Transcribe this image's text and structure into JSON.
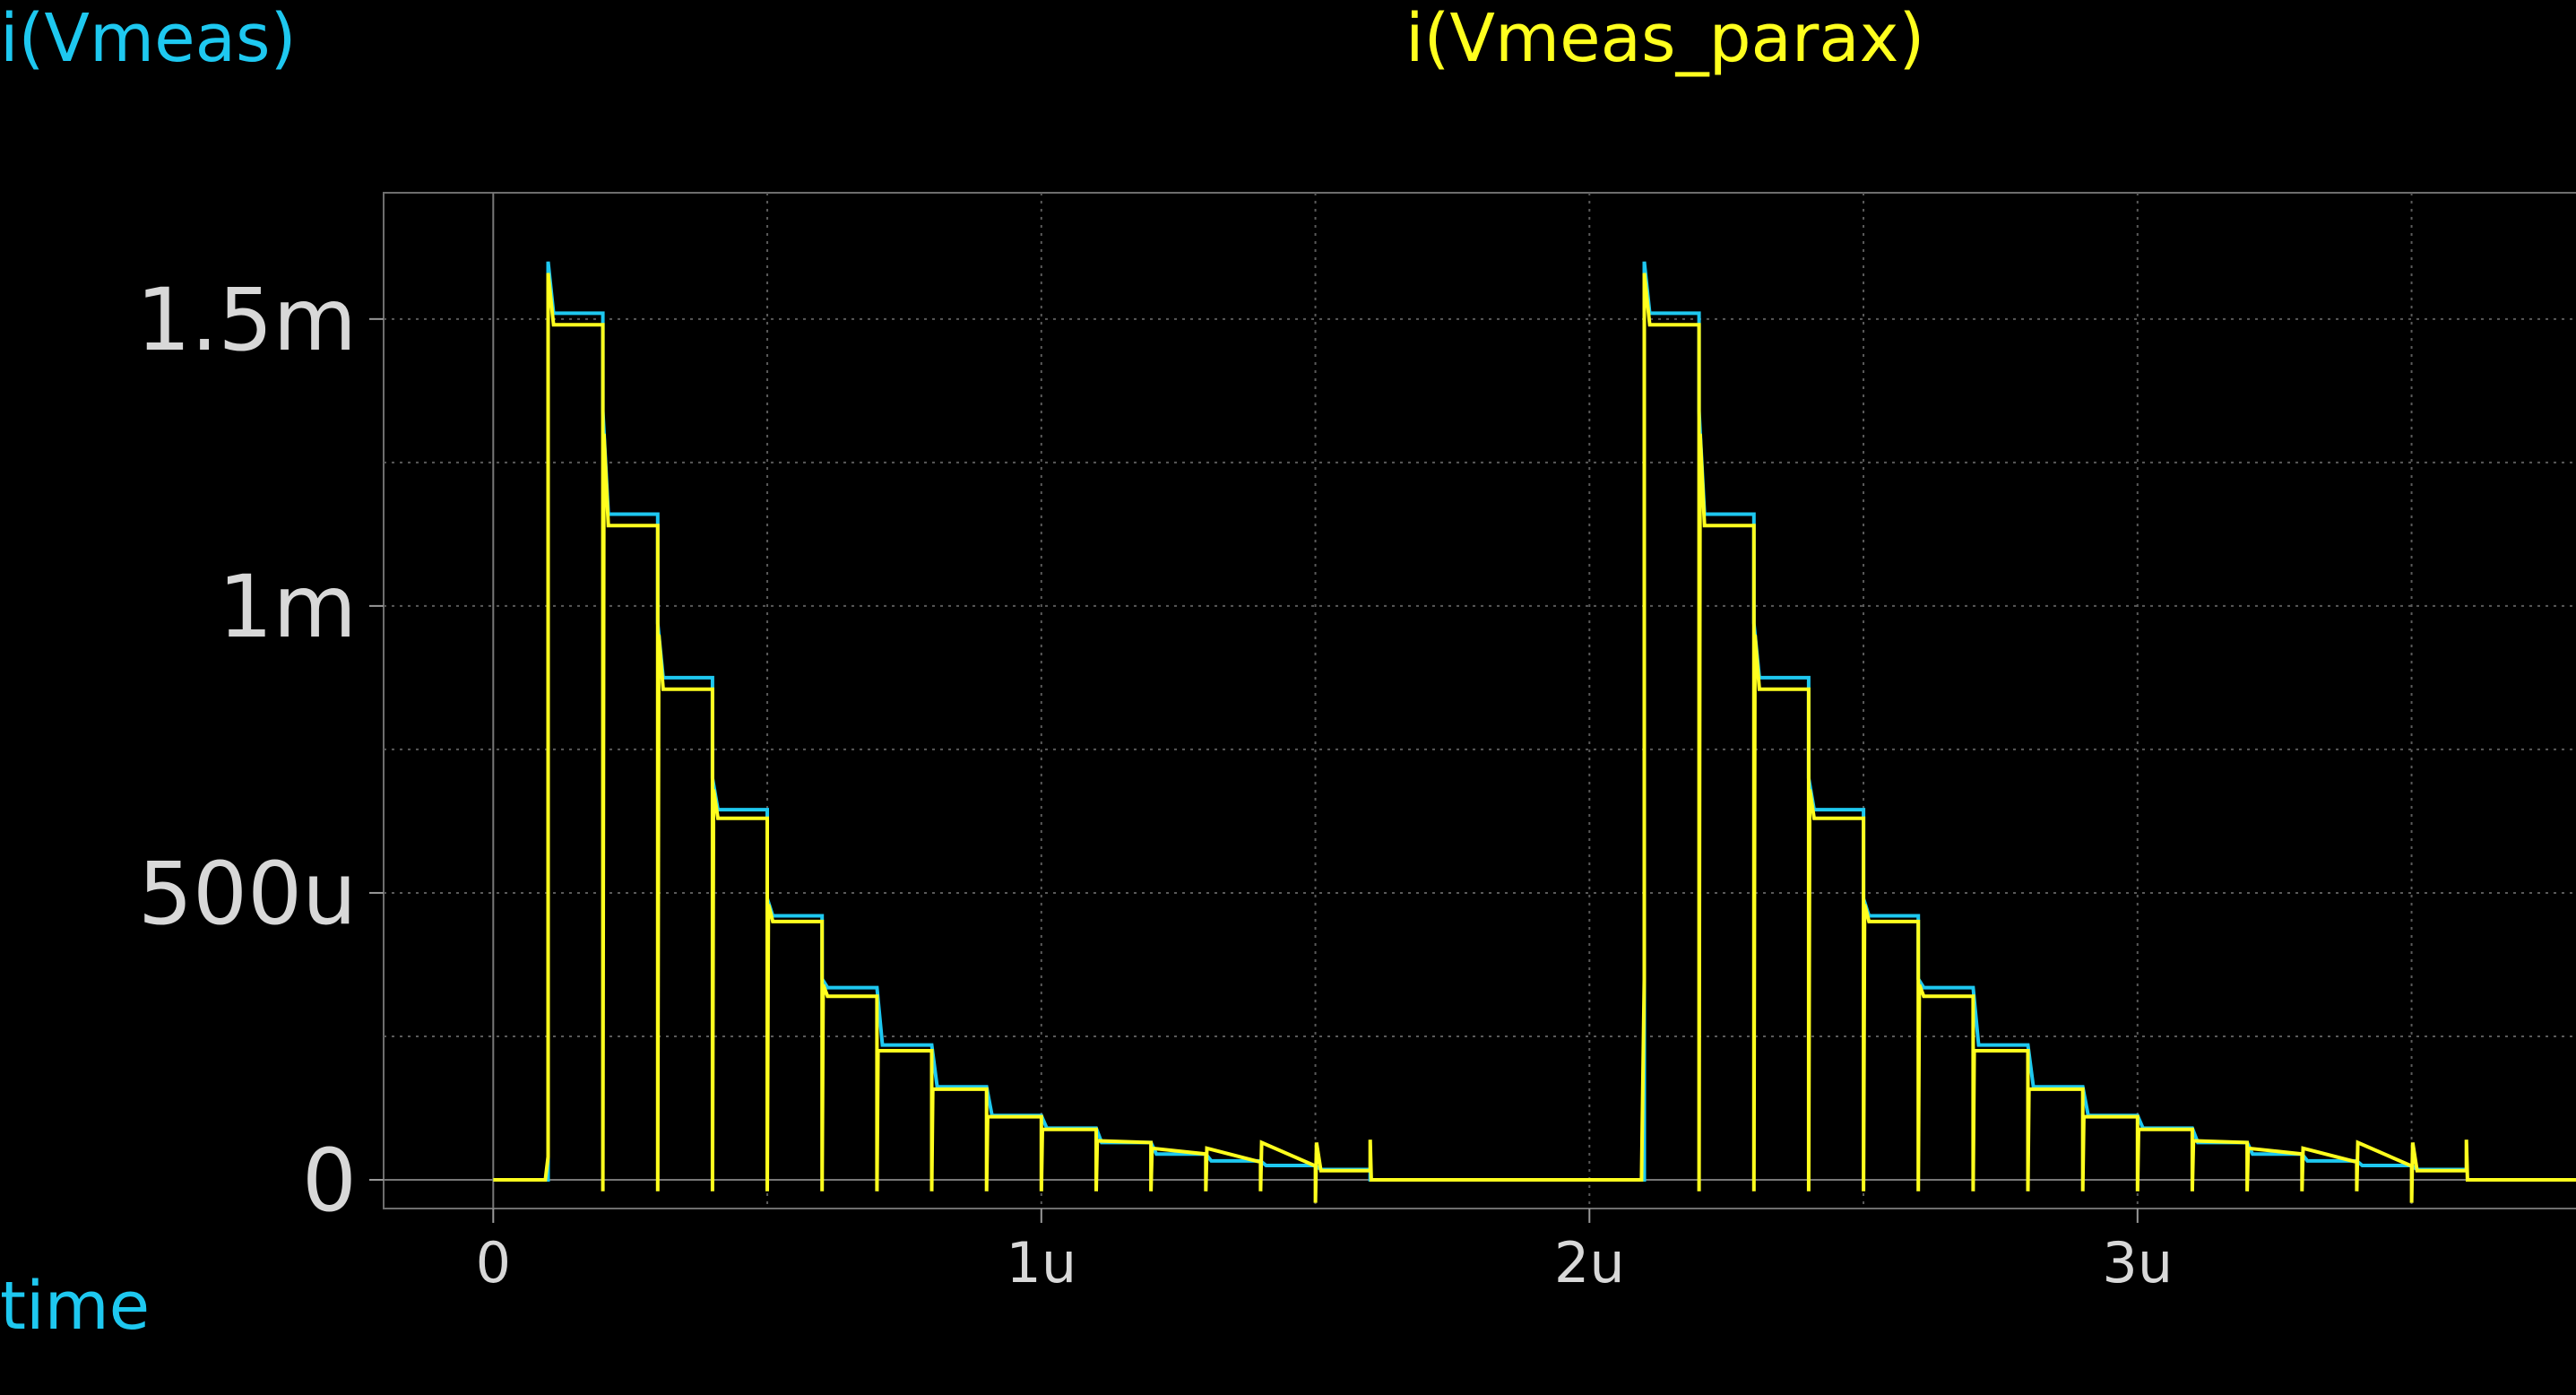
{
  "chart_data": {
    "type": "line",
    "xlabel": "time",
    "ylabel": "",
    "xlim": [
      -2e-07,
      3.8e-06
    ],
    "ylim": [
      -5e-05,
      0.00172
    ],
    "grid": true,
    "xticks": [
      {
        "value": 0,
        "label": "0"
      },
      {
        "value": 1e-06,
        "label": "1u"
      },
      {
        "value": 2e-06,
        "label": "2u"
      },
      {
        "value": 3e-06,
        "label": "3u"
      }
    ],
    "yticks": [
      {
        "value": 0,
        "label": "0"
      },
      {
        "value": 0.0005,
        "label": "500u"
      },
      {
        "value": 0.001,
        "label": "1m"
      },
      {
        "value": 0.0015,
        "label": "1.5m"
      }
    ],
    "minor_x": [
      5e-07,
      1.5e-06,
      2.5e-06,
      3.5e-06
    ],
    "minor_y": [
      0.00025,
      0.00075,
      0.00125
    ],
    "series": [
      {
        "name": "i(Vmeas)",
        "color": "#1ec8f0",
        "points": [
          [
            0,
            0
          ],
          [
            1e-07,
            0
          ],
          [
            1e-07,
            0.0016
          ],
          [
            1.1e-07,
            0.00151
          ],
          [
            2e-07,
            0.00151
          ],
          [
            2e-07,
            0.00134
          ],
          [
            2.1e-07,
            0.00116
          ],
          [
            3e-07,
            0.00116
          ],
          [
            3e-07,
            0.00097
          ],
          [
            3.1e-07,
            0.000875
          ],
          [
            4e-07,
            0.000875
          ],
          [
            4e-07,
            0.0007
          ],
          [
            4.1e-07,
            0.000645
          ],
          [
            5e-07,
            0.000645
          ],
          [
            5e-07,
            0.00049
          ],
          [
            5.1e-07,
            0.00046
          ],
          [
            6e-07,
            0.00046
          ],
          [
            6e-07,
            0.00035
          ],
          [
            6.1e-07,
            0.000335
          ],
          [
            7e-07,
            0.000335
          ],
          [
            7.1e-07,
            0.000235
          ],
          [
            8e-07,
            0.000235
          ],
          [
            8.1e-07,
            0.000162
          ],
          [
            9e-07,
            0.000162
          ],
          [
            9.1e-07,
            0.000112
          ],
          [
            1e-06,
            0.000112
          ],
          [
            1.01e-06,
            9e-05
          ],
          [
            1.1e-06,
            9e-05
          ],
          [
            1.11e-06,
            6.5e-05
          ],
          [
            1.2e-06,
            6.5e-05
          ],
          [
            1.21e-06,
            4.5e-05
          ],
          [
            1.3e-06,
            4.5e-05
          ],
          [
            1.31e-06,
            3.3e-05
          ],
          [
            1.4e-06,
            3.3e-05
          ],
          [
            1.41e-06,
            2.5e-05
          ],
          [
            1.5e-06,
            2.5e-05
          ],
          [
            1.51e-06,
            1.8e-05
          ],
          [
            1.6e-06,
            1.8e-05
          ],
          [
            1.6e-06,
            0
          ],
          [
            2.1e-06,
            0
          ],
          [
            2.1e-06,
            0.0016
          ],
          [
            2.11e-06,
            0.00151
          ],
          [
            2.2e-06,
            0.00151
          ],
          [
            2.2e-06,
            0.00134
          ],
          [
            2.21e-06,
            0.00116
          ],
          [
            2.3e-06,
            0.00116
          ],
          [
            2.3e-06,
            0.00097
          ],
          [
            2.31e-06,
            0.000875
          ],
          [
            2.4e-06,
            0.000875
          ],
          [
            2.4e-06,
            0.0007
          ],
          [
            2.41e-06,
            0.000645
          ],
          [
            2.5e-06,
            0.000645
          ],
          [
            2.5e-06,
            0.00049
          ],
          [
            2.51e-06,
            0.00046
          ],
          [
            2.6e-06,
            0.00046
          ],
          [
            2.6e-06,
            0.00035
          ],
          [
            2.61e-06,
            0.000335
          ],
          [
            2.7e-06,
            0.000335
          ],
          [
            2.71e-06,
            0.000235
          ],
          [
            2.8e-06,
            0.000235
          ],
          [
            2.81e-06,
            0.000162
          ],
          [
            2.9e-06,
            0.000162
          ],
          [
            2.91e-06,
            0.000112
          ],
          [
            3e-06,
            0.000112
          ],
          [
            3.01e-06,
            9e-05
          ],
          [
            3.1e-06,
            9e-05
          ],
          [
            3.11e-06,
            6.5e-05
          ],
          [
            3.2e-06,
            6.5e-05
          ],
          [
            3.21e-06,
            4.5e-05
          ],
          [
            3.3e-06,
            4.5e-05
          ],
          [
            3.31e-06,
            3.3e-05
          ],
          [
            3.4e-06,
            3.3e-05
          ],
          [
            3.41e-06,
            2.5e-05
          ],
          [
            3.5e-06,
            2.5e-05
          ],
          [
            3.51e-06,
            1.8e-05
          ],
          [
            3.6e-06,
            1.8e-05
          ]
        ]
      },
      {
        "name": "i(Vmeas_parax)",
        "color": "#ffff1e",
        "points": [
          [
            0,
            0
          ],
          [
            9.5e-08,
            0
          ],
          [
            1e-07,
            4e-05
          ],
          [
            1e-07,
            0.00158
          ],
          [
            1.1e-07,
            0.00149
          ],
          [
            2e-07,
            0.00149
          ],
          [
            2e-07,
            -2e-05
          ],
          [
            2.02e-07,
            0.0013
          ],
          [
            2.1e-07,
            0.00114
          ],
          [
            3e-07,
            0.00114
          ],
          [
            3e-07,
            -2e-05
          ],
          [
            3.02e-07,
            0.00095
          ],
          [
            3.1e-07,
            0.000855
          ],
          [
            4e-07,
            0.000855
          ],
          [
            4e-07,
            -2e-05
          ],
          [
            4.02e-07,
            0.00068
          ],
          [
            4.1e-07,
            0.00063
          ],
          [
            5e-07,
            0.00063
          ],
          [
            5e-07,
            -2e-05
          ],
          [
            5.02e-07,
            0.00048
          ],
          [
            5.1e-07,
            0.00045
          ],
          [
            6e-07,
            0.00045
          ],
          [
            6e-07,
            -2e-05
          ],
          [
            6.02e-07,
            0.00034
          ],
          [
            6.1e-07,
            0.00032
          ],
          [
            7e-07,
            0.00032
          ],
          [
            7e-07,
            -2e-05
          ],
          [
            7.02e-07,
            0.000225
          ],
          [
            8e-07,
            0.000225
          ],
          [
            8e-07,
            -2e-05
          ],
          [
            8.02e-07,
            0.000158
          ],
          [
            9e-07,
            0.000158
          ],
          [
            9e-07,
            -2e-05
          ],
          [
            9.02e-07,
            0.00011
          ],
          [
            1e-06,
            0.00011
          ],
          [
            1e-06,
            -2e-05
          ],
          [
            1.002e-06,
            8.8e-05
          ],
          [
            1.1e-06,
            8.8e-05
          ],
          [
            1.1e-06,
            -2e-05
          ],
          [
            1.102e-06,
            6.8e-05
          ],
          [
            1.2e-06,
            6.5e-05
          ],
          [
            1.2e-06,
            -2e-05
          ],
          [
            1.202e-06,
            5.5e-05
          ],
          [
            1.3e-06,
            4.5e-05
          ],
          [
            1.3e-06,
            -2e-05
          ],
          [
            1.302e-06,
            5.5e-05
          ],
          [
            1.4e-06,
            3.1e-05
          ],
          [
            1.4e-06,
            -2e-05
          ],
          [
            1.402e-06,
            6.5e-05
          ],
          [
            1.5e-06,
            2.4e-05
          ],
          [
            1.5e-06,
            -4e-05
          ],
          [
            1.502e-06,
            6.5e-05
          ],
          [
            1.51e-06,
            1.6e-05
          ],
          [
            1.6e-06,
            1.6e-05
          ],
          [
            1.6e-06,
            7e-05
          ],
          [
            1.602e-06,
            0
          ],
          [
            2.095e-06,
            0
          ],
          [
            2.1e-06,
            0.00035
          ],
          [
            2.1e-06,
            0.00158
          ],
          [
            2.11e-06,
            0.00149
          ],
          [
            2.2e-06,
            0.00149
          ],
          [
            2.2e-06,
            -2e-05
          ],
          [
            2.202e-06,
            0.0013
          ],
          [
            2.21e-06,
            0.00114
          ],
          [
            2.3e-06,
            0.00114
          ],
          [
            2.3e-06,
            -2e-05
          ],
          [
            2.302e-06,
            0.00095
          ],
          [
            2.31e-06,
            0.000855
          ],
          [
            2.4e-06,
            0.000855
          ],
          [
            2.4e-06,
            -2e-05
          ],
          [
            2.402e-06,
            0.00068
          ],
          [
            2.41e-06,
            0.00063
          ],
          [
            2.5e-06,
            0.00063
          ],
          [
            2.5e-06,
            -2e-05
          ],
          [
            2.502e-06,
            0.00048
          ],
          [
            2.51e-06,
            0.00045
          ],
          [
            2.6e-06,
            0.00045
          ],
          [
            2.6e-06,
            -2e-05
          ],
          [
            2.602e-06,
            0.00034
          ],
          [
            2.61e-06,
            0.00032
          ],
          [
            2.7e-06,
            0.00032
          ],
          [
            2.7e-06,
            -2e-05
          ],
          [
            2.702e-06,
            0.000225
          ],
          [
            2.8e-06,
            0.000225
          ],
          [
            2.8e-06,
            -2e-05
          ],
          [
            2.802e-06,
            0.000158
          ],
          [
            2.9e-06,
            0.000158
          ],
          [
            2.9e-06,
            -2e-05
          ],
          [
            2.902e-06,
            0.00011
          ],
          [
            3e-06,
            0.00011
          ],
          [
            3e-06,
            -2e-05
          ],
          [
            3.002e-06,
            8.8e-05
          ],
          [
            3.1e-06,
            8.8e-05
          ],
          [
            3.1e-06,
            -2e-05
          ],
          [
            3.102e-06,
            6.8e-05
          ],
          [
            3.2e-06,
            6.5e-05
          ],
          [
            3.2e-06,
            -2e-05
          ],
          [
            3.202e-06,
            5.5e-05
          ],
          [
            3.3e-06,
            4.5e-05
          ],
          [
            3.3e-06,
            -2e-05
          ],
          [
            3.302e-06,
            5.5e-05
          ],
          [
            3.4e-06,
            3.1e-05
          ],
          [
            3.4e-06,
            -2e-05
          ],
          [
            3.402e-06,
            6.5e-05
          ],
          [
            3.5e-06,
            2.4e-05
          ],
          [
            3.5e-06,
            -4e-05
          ],
          [
            3.502e-06,
            6.5e-05
          ],
          [
            3.51e-06,
            1.6e-05
          ],
          [
            3.6e-06,
            1.6e-05
          ],
          [
            3.6e-06,
            7e-05
          ],
          [
            3.602e-06,
            0
          ],
          [
            3.8e-06,
            0
          ]
        ]
      }
    ]
  }
}
